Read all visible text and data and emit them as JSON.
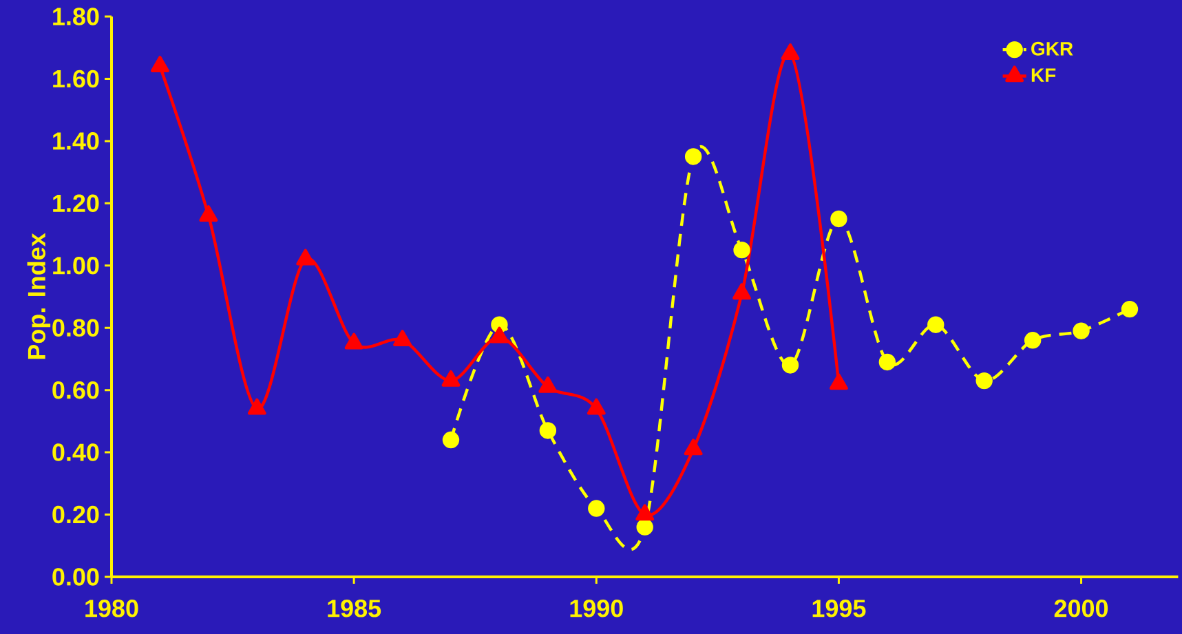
{
  "chart_data": {
    "type": "line",
    "ylabel": "Pop. Index",
    "xlim": [
      1980,
      2002
    ],
    "ylim": [
      0,
      1.8
    ],
    "xticks": [
      1980,
      1985,
      1990,
      1995,
      2000
    ],
    "yticks": [
      {
        "value": 0,
        "label": "0.00"
      },
      {
        "value": 0.2,
        "label": "0.20"
      },
      {
        "value": 0.4,
        "label": "0.40"
      },
      {
        "value": 0.6,
        "label": "0.60"
      },
      {
        "value": 0.8,
        "label": "0.80"
      },
      {
        "value": 1.0,
        "label": "1.00"
      },
      {
        "value": 1.2,
        "label": "1.20"
      },
      {
        "value": 1.4,
        "label": "1.40"
      },
      {
        "value": 1.6,
        "label": "1.60"
      },
      {
        "value": 1.8,
        "label": "1.80"
      }
    ],
    "grid": false,
    "legend": "top right",
    "series": [
      {
        "name": "GKR",
        "color": "#ffff00",
        "marker": "circle",
        "line_style": "dashed",
        "x": [
          1987,
          1988,
          1989,
          1990,
          1991,
          1992,
          1993,
          1994,
          1995,
          1996,
          1997,
          1998,
          1999,
          2000,
          2001
        ],
        "values": [
          0.44,
          0.81,
          0.47,
          0.22,
          0.16,
          1.35,
          1.05,
          0.68,
          1.15,
          0.69,
          0.81,
          0.63,
          0.76,
          0.79,
          0.86
        ]
      },
      {
        "name": "KF",
        "color": "#ff0000",
        "marker": "triangle",
        "line_style": "solid",
        "x": [
          1981,
          1982,
          1983,
          1984,
          1985,
          1986,
          1987,
          1988,
          1989,
          1990,
          1991,
          1992,
          1993,
          1994,
          1995
        ],
        "values": [
          1.64,
          1.16,
          0.54,
          1.02,
          0.75,
          0.76,
          0.63,
          0.77,
          0.61,
          0.54,
          0.2,
          0.41,
          0.91,
          1.68,
          0.62
        ]
      }
    ]
  }
}
